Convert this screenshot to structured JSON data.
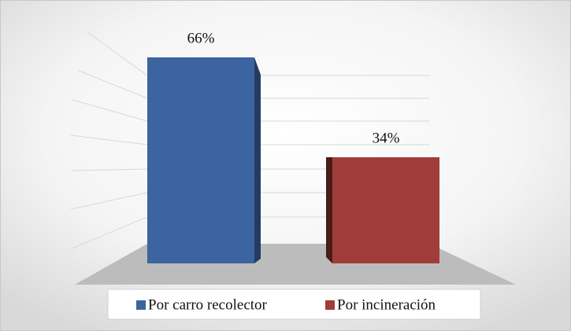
{
  "chart_data": {
    "type": "bar3d",
    "series": [
      {
        "name": "Por carro recolector",
        "color": "#3b64a0",
        "values": [
          66
        ],
        "value_labels": [
          "66%"
        ]
      },
      {
        "name": "Por incineración",
        "color": "#a03c3a",
        "values": [
          34
        ],
        "value_labels": [
          "34%"
        ]
      }
    ],
    "legend": "bottom",
    "grid": true
  }
}
